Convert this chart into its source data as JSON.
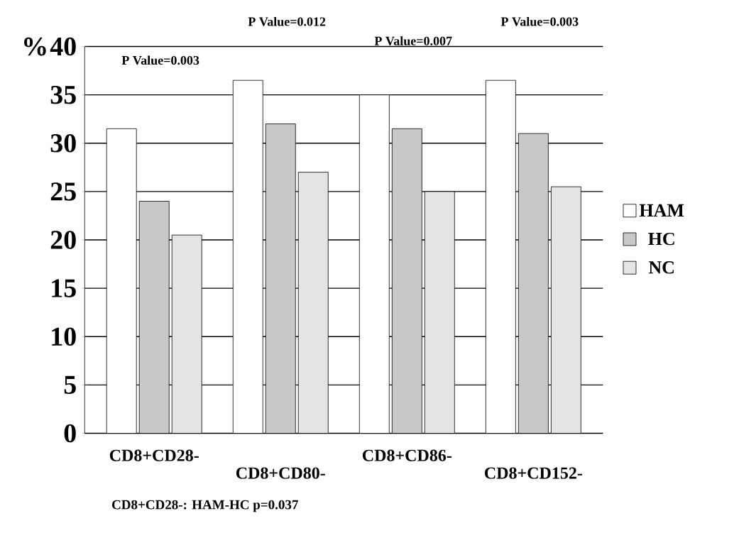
{
  "chart_data": {
    "type": "bar",
    "ylabel": "%",
    "categories": [
      "CD8+CD28-",
      "CD8+CD80-",
      "CD8+CD86-",
      "CD8+CD152-"
    ],
    "series": [
      {
        "name": "HAM",
        "color": "#ffffff",
        "values": [
          31.5,
          36.5,
          35,
          36.5
        ]
      },
      {
        "name": "HC",
        "color": "#c8c8c8",
        "values": [
          24,
          32,
          31.5,
          31
        ]
      },
      {
        "name": "NC",
        "color": "#e4e4e4",
        "values": [
          20.5,
          27,
          25,
          25.5
        ]
      }
    ],
    "ylim": [
      0,
      40
    ],
    "yticks": [
      0,
      5,
      10,
      15,
      20,
      25,
      30,
      35,
      40
    ],
    "grid": "y",
    "legend": "right",
    "annotations": [
      "P Value=0.003",
      "P Value=0.012",
      "P Value=0.007",
      "P Value=0.003",
      "CD8+CD28-: HAM-HC p=0.037"
    ]
  }
}
